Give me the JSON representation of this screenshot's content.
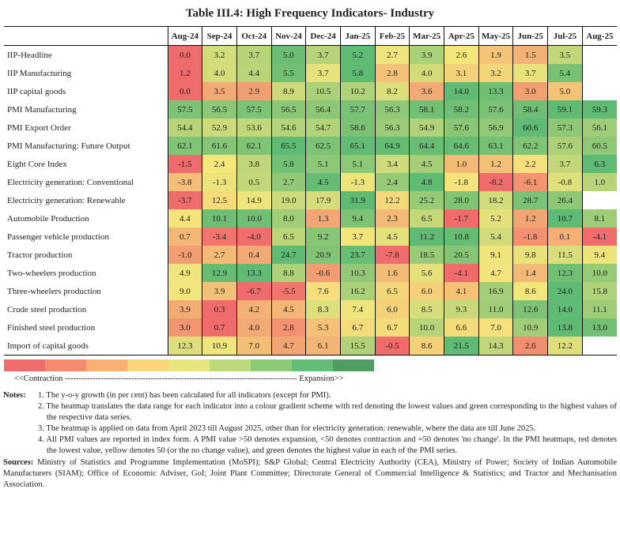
{
  "title": "Table III.4: High Frequency Indicators- Industry",
  "months": [
    "Aug-24",
    "Sep-24",
    "Oct-24",
    "Nov-24",
    "Dec-24",
    "Jan-25",
    "Feb-25",
    "Mar-25",
    "Apr-25",
    "May-25",
    "Jun-25",
    "Jul-25",
    "Aug-25"
  ],
  "rows": [
    {
      "label": "IIP-Headline",
      "pmi": false,
      "values": [
        0.0,
        3.2,
        3.7,
        5.0,
        3.7,
        5.2,
        2.7,
        3.9,
        2.6,
        1.9,
        1.5,
        3.5,
        null
      ]
    },
    {
      "label": "IIP Manufacturing",
      "pmi": false,
      "values": [
        1.2,
        4.0,
        4.4,
        5.5,
        3.7,
        5.8,
        2.8,
        4.0,
        3.1,
        3.2,
        3.7,
        5.4,
        null
      ]
    },
    {
      "label": "IIP capital goods",
      "pmi": false,
      "values": [
        0.0,
        3.5,
        2.9,
        8.9,
        10.5,
        10.2,
        8.2,
        3.6,
        14.0,
        13.3,
        3.0,
        5.0,
        null
      ]
    },
    {
      "label": "PMI Manufacturing",
      "pmi": true,
      "values": [
        57.5,
        56.5,
        57.5,
        56.5,
        56.4,
        57.7,
        56.3,
        58.1,
        58.2,
        57.6,
        58.4,
        59.1,
        59.3
      ]
    },
    {
      "label": "PMI Export Order",
      "pmi": true,
      "values": [
        54.4,
        52.9,
        53.6,
        54.6,
        54.7,
        58.6,
        56.3,
        54.9,
        57.6,
        56.9,
        60.6,
        57.3,
        56.1
      ]
    },
    {
      "label": "PMI Manufacturing: Future Output",
      "pmi": true,
      "values": [
        62.1,
        61.6,
        62.1,
        65.5,
        62.5,
        65.1,
        64.9,
        64.4,
        64.6,
        63.1,
        62.2,
        57.6,
        60.5
      ]
    },
    {
      "label": "Eight Core Index",
      "pmi": false,
      "values": [
        -1.5,
        2.4,
        3.8,
        5.8,
        5.1,
        5.1,
        3.4,
        4.5,
        1.0,
        1.2,
        2.2,
        3.7,
        6.3
      ]
    },
    {
      "label": "Electricity generation: Conventional",
      "pmi": false,
      "values": [
        -3.8,
        -1.3,
        0.5,
        2.7,
        4.5,
        -1.3,
        2.4,
        4.8,
        -1.8,
        -8.2,
        -6.1,
        -0.8,
        1.0
      ]
    },
    {
      "label": "Electricity generation: Renewable",
      "pmi": false,
      "values": [
        -3.7,
        12.5,
        14.9,
        19.0,
        17.9,
        31.9,
        12.2,
        25.2,
        28.0,
        18.2,
        28.7,
        26.4,
        null
      ]
    },
    {
      "label": "Automobile Production",
      "pmi": false,
      "values": [
        4.4,
        10.1,
        10.0,
        8.0,
        1.3,
        9.4,
        2.3,
        6.5,
        -1.7,
        5.2,
        1.2,
        10.7,
        8.1
      ]
    },
    {
      "label": "Passenger vehicle production",
      "pmi": false,
      "values": [
        0.7,
        -3.4,
        -4.0,
        6.5,
        9.2,
        3.7,
        4.5,
        11.2,
        10.8,
        5.4,
        -1.8,
        0.1,
        -4.1
      ]
    },
    {
      "label": "Tractor production",
      "pmi": false,
      "values": [
        -1.0,
        2.7,
        0.4,
        24.7,
        20.9,
        23.7,
        -7.8,
        18.5,
        20.5,
        9.1,
        9.8,
        11.5,
        9.4
      ]
    },
    {
      "label": "Two-wheelers production",
      "pmi": false,
      "values": [
        4.9,
        12.9,
        13.3,
        8.8,
        -0.6,
        10.3,
        1.6,
        5.6,
        -4.1,
        4.7,
        1.4,
        12.3,
        10.0
      ]
    },
    {
      "label": "Three-wheelers production",
      "pmi": false,
      "values": [
        9.0,
        3.9,
        -6.7,
        -5.5,
        7.6,
        16.2,
        6.5,
        6.0,
        4.1,
        16.9,
        8.6,
        24.0,
        15.8
      ]
    },
    {
      "label": "Crude steel production",
      "pmi": false,
      "values": [
        3.9,
        0.3,
        4.2,
        4.5,
        8.3,
        7.4,
        6.0,
        8.5,
        9.3,
        11.0,
        12.6,
        14.0,
        11.1
      ]
    },
    {
      "label": "Finished steel production",
      "pmi": false,
      "values": [
        3.0,
        0.7,
        4.0,
        2.8,
        5.3,
        6.7,
        6.7,
        10.0,
        6.6,
        7.0,
        10.9,
        13.8,
        13.0
      ]
    },
    {
      "label": "Import of capital goods",
      "pmi": false,
      "values": [
        12.3,
        10.9,
        7.0,
        4.7,
        6.1,
        15.5,
        -0.5,
        8.6,
        21.5,
        14.3,
        2.6,
        12.2,
        null
      ]
    }
  ],
  "legend": {
    "colors": [
      "#f06b6b",
      "#f58a6e",
      "#f8b073",
      "#fbd57a",
      "#e7e57e",
      "#bcd97c",
      "#8ccb76",
      "#63bd78",
      "#4f9d63"
    ],
    "text": "<<Contraction ------------------------------------------------------------------------------------ Expansion>>"
  },
  "notes": {
    "label": "Notes:",
    "items": [
      "1. The y-o-y growth (in per cent) has been calculated for all indicators (except for PMI).",
      "2. The heatmap translates the data range for each indicator into a colour gradient scheme with red denoting the lowest values and green corresponding to the highest values of the respective data series.",
      "3. The heatmap is applied on data from April 2023 till August 2025, other than for electricity generation: renewable, where the data are till June 2025.",
      "4. All PMI values are reported in index form. A PMI value >50 denotes expansion, <50 denotes contraction and =50 denotes 'no change'. In the PMI heatmaps, red denotes the lowest value, yellow denotes 50 (or the no change value), and green denotes the highest value in each of the PMI series."
    ]
  },
  "sources": {
    "label": "Sources:",
    "text": "Ministry of Statistics and Programme Implementation (MoSPI); S&P Global; Central Electricity Authority (CEA), Ministry of Power; Society of Indian Automobile Manufacturers (SIAM); Office of Economic Adviser, GoI; Joint Plant Committee; Directorate General of Commercial Intelligence & Statistics; and Tractor and Mechanisation Association."
  }
}
